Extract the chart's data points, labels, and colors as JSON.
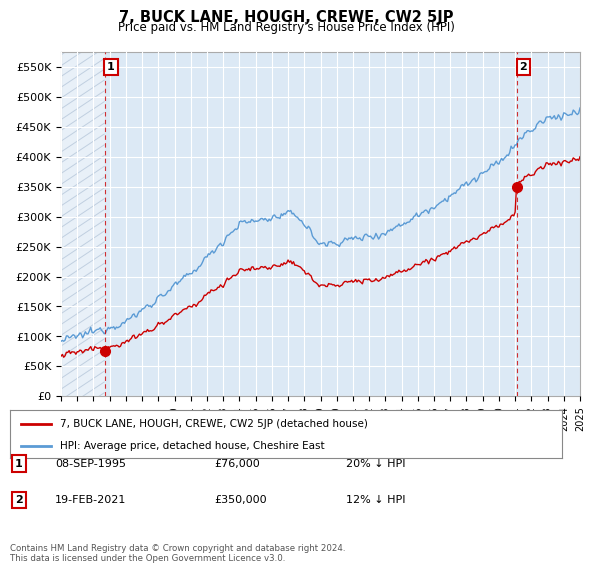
{
  "title": "7, BUCK LANE, HOUGH, CREWE, CW2 5JP",
  "subtitle": "Price paid vs. HM Land Registry's House Price Index (HPI)",
  "ylim": [
    0,
    575000
  ],
  "yticks": [
    0,
    50000,
    100000,
    150000,
    200000,
    250000,
    300000,
    350000,
    400000,
    450000,
    500000,
    550000
  ],
  "ytick_labels": [
    "£0",
    "£50K",
    "£100K",
    "£150K",
    "£200K",
    "£250K",
    "£300K",
    "£350K",
    "£400K",
    "£450K",
    "£500K",
    "£550K"
  ],
  "background_color": "#ffffff",
  "plot_bg_color": "#dce9f5",
  "grid_color": "#ffffff",
  "hpi_color": "#5b9bd5",
  "price_color": "#cc0000",
  "hatch_color": "#c0cfe0",
  "vline_color": "#cc0000",
  "legend_label_price": "7, BUCK LANE, HOUGH, CREWE, CW2 5JP (detached house)",
  "legend_label_hpi": "HPI: Average price, detached house, Cheshire East",
  "annotation1_date": "08-SEP-1995",
  "annotation1_price": "£76,000",
  "annotation1_hpi": "20% ↓ HPI",
  "annotation2_date": "19-FEB-2021",
  "annotation2_price": "£350,000",
  "annotation2_hpi": "12% ↓ HPI",
  "footer": "Contains HM Land Registry data © Crown copyright and database right 2024.\nThis data is licensed under the Open Government Licence v3.0.",
  "point1_x": 1995.69,
  "point1_y": 76000,
  "point2_x": 2021.12,
  "point2_y": 350000,
  "xmin": 1993,
  "xmax": 2025
}
